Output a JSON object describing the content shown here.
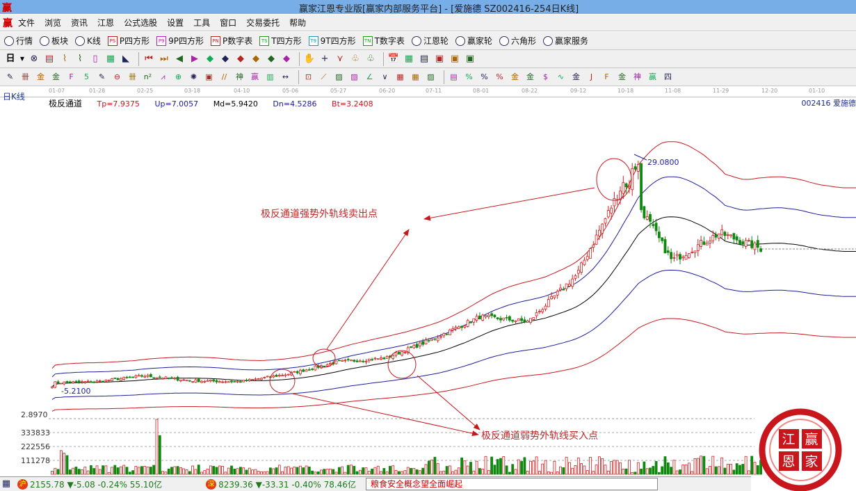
{
  "window": {
    "title": "赢家江恩专业版[赢家内部服务平台] - [爱施德  SZ002416-254日K线]",
    "logo": "赢"
  },
  "menu": [
    "文件",
    "浏览",
    "资讯",
    "江恩",
    "公式选股",
    "设置",
    "工具",
    "窗口",
    "交易委托",
    "帮助"
  ],
  "toolbar1": [
    {
      "icon": "grid-icon",
      "label": "行情"
    },
    {
      "icon": "blocks-icon",
      "label": "板块"
    },
    {
      "icon": "candles-icon",
      "label": "K线"
    },
    {
      "icon": "PS",
      "label": "P四方形"
    },
    {
      "icon": "P9",
      "label": "9P四方形"
    },
    {
      "icon": "PN",
      "label": "P数字表"
    },
    {
      "icon": "TS",
      "label": "T四方形"
    },
    {
      "icon": "T9",
      "label": "9T四方形"
    },
    {
      "icon": "TN",
      "label": "T数字表"
    },
    {
      "icon": "wheel-icon",
      "label": "江恩轮"
    },
    {
      "icon": "big-icon",
      "label": "赢家轮"
    },
    {
      "icon": "hexagon-icon",
      "label": "六角形"
    },
    {
      "icon": "dollar-icon",
      "label": "赢家服务"
    }
  ],
  "toolbar2": {
    "period": "日",
    "icons": [
      "⊗",
      "▤",
      "⌇",
      "⌇",
      "▯",
      "▦",
      "◣",
      "⏮",
      "⏭",
      "◀",
      "▶",
      "◆",
      "◆",
      "◆",
      "◆",
      "◆",
      "◆",
      "✋",
      "+",
      "⋎",
      "♧",
      "♧",
      "📅",
      "▦",
      "▤",
      "▣",
      "▣",
      "▣"
    ]
  },
  "toolbar3": {
    "icons": [
      "✎",
      "卌",
      "金",
      "金",
      "F",
      "5",
      "✎",
      "⊖",
      "卌",
      "n²",
      "⩘",
      "⊕",
      "✺",
      "▣",
      "//",
      "神",
      "赢",
      "▥",
      "↔",
      "⊡",
      "⟋",
      "▨",
      "▨",
      "∠",
      "∨",
      "▦",
      "▦",
      "▨",
      "▤",
      "%",
      "%",
      "%",
      "金",
      "金",
      "$",
      "∿",
      "金",
      "J",
      "F",
      "金",
      "神",
      "赢",
      "四"
    ]
  },
  "axis": {
    "kline_label": "日K线",
    "dates": [
      "01-07",
      "01-28",
      "02-25",
      "03-18",
      "04-10",
      "05-06",
      "05-27",
      "06-20",
      "07-11",
      "08-01",
      "08-22",
      "09-12",
      "10-18",
      "11-08",
      "11-29",
      "12-20",
      "01-10"
    ]
  },
  "indicator": {
    "name": "极反通道",
    "tp": "Tp=7.9375",
    "up": "Up=7.0057",
    "md": "Md=5.9420",
    "dn": "Dn=4.5286",
    "bt": "Bt=3.2408"
  },
  "stock": {
    "code_name": "002416 爱施德"
  },
  "chart_data": {
    "type": "candlestick",
    "x_dates": [
      "01-07",
      "01-28",
      "02-25",
      "03-18",
      "04-10",
      "05-06",
      "05-27",
      "06-20",
      "07-11",
      "08-01",
      "08-22",
      "09-12",
      "10-18",
      "11-08",
      "11-29",
      "12-20"
    ],
    "close_at_dates": [
      5.9,
      6.0,
      6.6,
      6.1,
      6.0,
      6.8,
      8.0,
      8.4,
      10.3,
      12.6,
      12.1,
      16.9,
      26.4,
      18.3,
      21.1,
      19.5
    ],
    "high_label": "29.0800",
    "low_label": "5.2100",
    "high": 29.08,
    "low": 5.21,
    "price_axis_min_label": "2.8970",
    "volume_ticks": [
      "333833",
      "222556",
      "111278"
    ],
    "band_ratios": {
      "Tp": 1.336,
      "Up": 1.179,
      "Md": 1.0,
      "Dn": 0.762,
      "Bt": 0.546
    },
    "colors": {
      "up": "#d02020",
      "down": "#118811",
      "tp_bt": "#c8161d",
      "up_dn": "#1c1c9c",
      "md": "#000000"
    }
  },
  "annotations": {
    "sell": "极反通道强势外轨线卖出点",
    "buy": "极反通道弱势外轨线买入点"
  },
  "status": {
    "sh_badge": "沪",
    "sh": "2155.78 ▼-5.08 -0.24% 55.10亿",
    "sz_badge": "深",
    "sz": "8239.36 ▼-33.31 -0.40% 78.46亿",
    "ticker": "粮食安全概念望全面崛起"
  },
  "seal": {
    "chars": [
      "江",
      "赢",
      "恩",
      "家"
    ]
  }
}
